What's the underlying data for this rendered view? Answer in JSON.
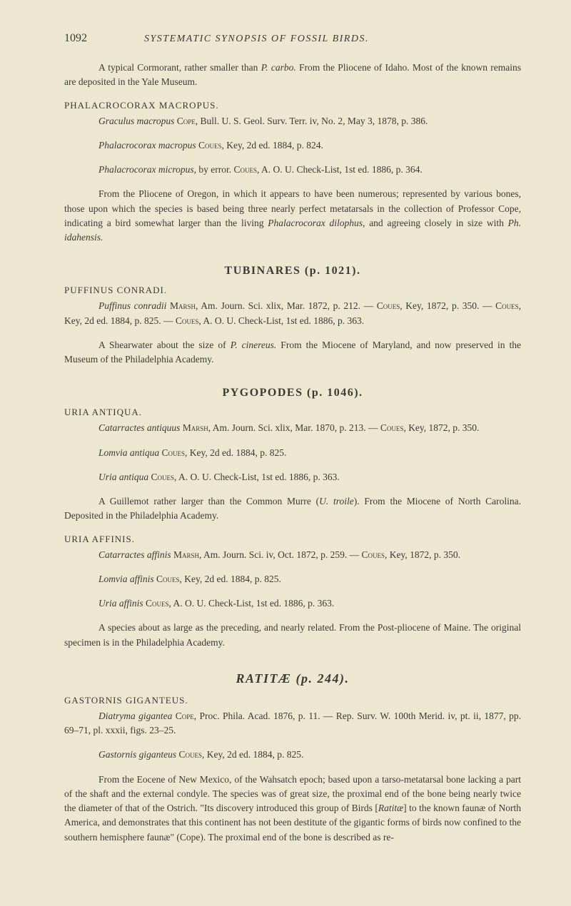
{
  "header": {
    "page_number": "1092",
    "running_title": "SYSTEMATIC SYNOPSIS OF FOSSIL BIRDS."
  },
  "para1": {
    "indent_text": "A typical Cormorant, rather smaller than ",
    "i1": "P. carbo.",
    "tail1": " From the Pliocene of Idaho. Most of the known remains are deposited in the Yale Museum."
  },
  "sp_phal": {
    "label": "PHALACROCORAX MACROPUS."
  },
  "line_graculus": {
    "i1": "Graculus macropus ",
    "sc1": "Cope",
    "t2": ", Bull. U. S. Geol. Surv. Terr. iv, No. 2, May 3, 1878, p. 386."
  },
  "line_ph_macropus": {
    "i1": "Phalacrocorax macropus ",
    "sc1": "Coues",
    "t2": ", Key, 2d ed. 1884, p. 824."
  },
  "line_ph_micropus": {
    "i1": "Phalacrocorax micropus",
    "t1": ", by error. ",
    "sc1": "Coues",
    "t2": ", A. O. U. Check-List, 1st ed. 1886, p. 364."
  },
  "para_phal_body": {
    "t1": "From the Pliocene of Oregon, in which it appears to have been numerous; represented by various bones, those upon which the species is based being three nearly perfect metatarsals in the collection of Professor Cope, indicating a bird somewhat larger than the living ",
    "i1": "Phalacrocorax dilophus",
    "t2": ", and agreeing closely in size with ",
    "i2": "Ph. idahensis."
  },
  "sect_tub": {
    "title": "TUBINARES (p. 1021)."
  },
  "sp_puff": {
    "label": "PUFFINUS CONRADI."
  },
  "line_puff": {
    "i1": "Puffinus conradii ",
    "sc1": "Marsh",
    "t1": ", Am. Journ. Sci. xlix, Mar. 1872, p. 212. — ",
    "sc2": "Coues",
    "t2": ", Key, 1872, p. 350. — ",
    "sc3": "Coues",
    "t3": ", Key, 2d ed. 1884, p. 825. — ",
    "sc4": "Coues",
    "t4": ", A. O. U. Check-List, 1st ed. 1886, p. 363."
  },
  "para_puff_body": {
    "t1": "A Shearwater about the size of ",
    "i1": "P. cinereus.",
    "t2": " From the Miocene of Maryland, and now preserved in the Museum of the Philadelphia Academy."
  },
  "sect_pyg": {
    "title": "PYGOPODES (p. 1046)."
  },
  "sp_uria_ant": {
    "label": "URIA ANTIQUA."
  },
  "line_catarractes": {
    "i1": "Catarractes antiquus ",
    "sc1": "Marsh",
    "t1": ", Am. Journ. Sci. xlix, Mar. 1870, p. 213. — ",
    "sc2": "Coues",
    "t2": ", Key, 1872, p. 350."
  },
  "line_lomvia_ant": {
    "i1": "Lomvia antiqua ",
    "sc1": "Coues",
    "t2": ", Key, 2d ed. 1884, p. 825."
  },
  "line_uria_ant": {
    "i1": "Uria antiqua ",
    "sc1": "Coues",
    "t2": ", A. O. U. Check-List, 1st ed. 1886, p. 363."
  },
  "para_guill": {
    "t1": "A Guillemot rather larger than the Common Murre (",
    "i1": "U. troile",
    "t2": "). From the Miocene of North Carolina. Deposited in the Philadelphia Academy."
  },
  "sp_uria_aff": {
    "label": "URIA AFFINIS."
  },
  "line_cat_aff": {
    "i1": "Catarractes affinis ",
    "sc1": "Marsh",
    "t1": ", Am. Journ. Sci. iv, Oct. 1872, p. 259. — ",
    "sc2": "Coues",
    "t2": ", Key, 1872, p. 350."
  },
  "line_lomvia_aff": {
    "i1": "Lomvia affinis ",
    "sc1": "Coues",
    "t2": ", Key, 2d ed. 1884, p. 825."
  },
  "line_uria_aff": {
    "i1": "Uria affinis ",
    "sc1": "Coues",
    "t2": ", A. O. U. Check-List, 1st ed. 1886, p. 363."
  },
  "para_uria_aff_body": {
    "t1": "A species about as large as the preceding, and nearly related. From the Post-pliocene of Maine. The original specimen is in the Philadelphia Academy."
  },
  "sect_ratitae": {
    "title": "RATITÆ (p. 244)."
  },
  "sp_gast": {
    "label": "GASTORNIS GIGANTEUS."
  },
  "line_diatryma": {
    "i1": "Diatryma gigantea ",
    "sc1": "Cope",
    "t1": ", Proc. Phila. Acad. 1876, p. 11. — Rep. Surv. W. 100th Merid. iv, pt. ii, 1877, pp. 69–71, pl. xxxii, figs. 23–25."
  },
  "line_gastornis": {
    "i1": "Gastornis giganteus ",
    "sc1": "Coues",
    "t2": ", Key, 2d ed. 1884, p. 825."
  },
  "para_gast_body": {
    "t1": "From the Eocene of New Mexico, of the Wahsatch epoch; based upon a tarso-metatarsal bone lacking a part of the shaft and the external condyle. The species was of great size, the proximal end of the bone being nearly twice the diameter of that of the Ostrich. \"Its discovery introduced this group of Birds [",
    "i1": "Ratitæ",
    "t2": "] to the known faunæ of North America, and demonstrates that this continent has not been destitute of the gigantic forms of birds now confined to the southern hemisphere faunæ\" (Cope). The proximal end of the bone is described as re-"
  }
}
